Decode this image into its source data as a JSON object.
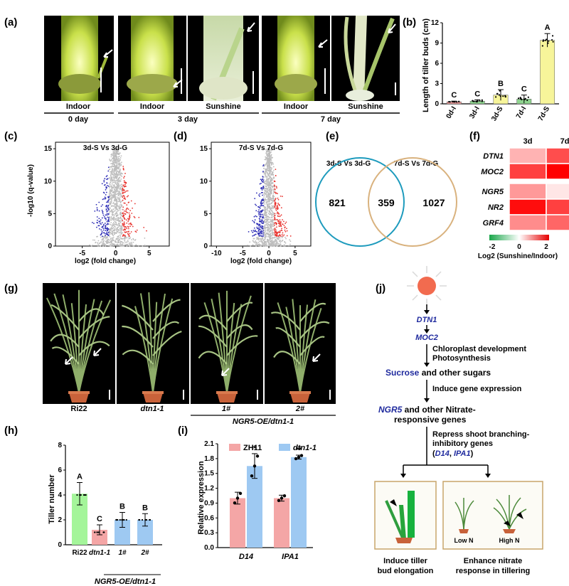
{
  "panels": [
    "(a)",
    "(b)",
    "(c)",
    "(d)",
    "(e)",
    "(f)",
    "(g)",
    "(h)",
    "(i)",
    "(j)"
  ],
  "panel_a": {
    "image_labels": [
      "Indoor",
      "Indoor",
      "Sunshine",
      "Indoor",
      "Sunshine"
    ],
    "day_labels": [
      "0 day",
      "3 day",
      "7 day"
    ]
  },
  "panel_c": {
    "title": "3d-S Vs 3d-G",
    "xlabel": "log2 (fold change)",
    "ylabel": "-log10 (q-value)"
  },
  "panel_d": {
    "title": "7d-S Vs 7d-G",
    "xlabel": "log2 (fold change)"
  },
  "panel_e": {
    "left_label": "3d-S Vs 3d-G",
    "right_label": "7d-S Vs 7d-G",
    "left_only": "821",
    "overlap": "359",
    "right_only": "1027"
  },
  "panel_f": {
    "genes": [
      "DTN1",
      "MOC2",
      "NGR5",
      "NR2",
      "GRF4"
    ],
    "cols": [
      "3d",
      "7d"
    ],
    "legend_ticks": [
      "-2",
      "0",
      "2"
    ],
    "legend_title": "Log2 (Sunshine/Indoor)"
  },
  "panel_g": {
    "labels": [
      "Ri22",
      "dtn1-1",
      "1#",
      "2#"
    ],
    "group_label": "NGR5-OE/dtn1-1"
  },
  "panel_j": {
    "dtn1": "DTN1",
    "moc2": "MOC2",
    "step1a": "Chloroplast development",
    "step1b": "Photosynthesis",
    "sucrose": "Sucrose",
    "sucrose_rest": " and other sugars",
    "step2": "Induce gene expression",
    "ngr5": "NGR5",
    "ngr5_rest": " and other Nitrate-",
    "ngr5_line2": "responsive genes",
    "step3a": "Repress shoot branching-",
    "step3b": "inhibitory genes",
    "step3c_open": "(",
    "d14": "D14",
    "comma": ", ",
    "ipa1": "IPA1",
    "step3c_close": ")",
    "low_n": "Low N",
    "high_n": "High N",
    "out1a": "Induce tiller",
    "out1b": "bud elongation",
    "out2a": "Enhance nitrate",
    "out2b": "response in tillering"
  },
  "colors": {
    "red": "#e8342f",
    "blue": "#2b2bb5",
    "gray": "#bdbdbd",
    "yellow": "#f7f59a",
    "green": "#a4f59a",
    "pink": "#f4a6a6",
    "lightblue": "#9ec9f2",
    "venn_left": "#1e9bbd",
    "venn_right": "#d9b27e",
    "sun": "#f26b4f"
  },
  "chart_data": [
    {
      "panel": "(b)",
      "type": "bar",
      "categories": [
        "0d-I",
        "3d-I",
        "3d-S",
        "7d-I",
        "7d-S"
      ],
      "values": [
        0.3,
        0.4,
        1.3,
        0.7,
        9.4
      ],
      "errors": [
        0.1,
        0.2,
        0.8,
        0.6,
        1.0
      ],
      "significance": [
        "C",
        "C",
        "B",
        "C",
        "A"
      ],
      "ylabel": "Length of tiller buds (cm)",
      "ylim": [
        0,
        12
      ],
      "yticks": [
        0,
        3,
        6,
        9,
        12
      ]
    },
    {
      "panel": "(c)",
      "type": "scatter",
      "xlabel": "log2 (fold change)",
      "ylabel": "-log10 (q-value)",
      "xlim": [
        -9,
        8
      ],
      "ylim": [
        0,
        16
      ],
      "xticks": [
        -5,
        0,
        5
      ],
      "yticks": [
        0,
        5,
        10,
        15
      ]
    },
    {
      "panel": "(d)",
      "type": "scatter",
      "xlabel": "log2 (fold change)",
      "xlim": [
        -11,
        8
      ],
      "ylim": [
        0,
        16
      ],
      "xticks": [
        -10,
        -5,
        0,
        5
      ],
      "yticks": [
        0,
        5,
        10,
        15
      ]
    },
    {
      "panel": "(f)",
      "type": "heatmap",
      "rows": [
        "DTN1",
        "MOC2",
        "NGR5",
        "NR2",
        "GRF4"
      ],
      "cols": [
        "3d",
        "7d"
      ],
      "values": [
        [
          0.6,
          1.4
        ],
        [
          1.5,
          2.0
        ],
        [
          0.8,
          0.2
        ],
        [
          1.9,
          1.5
        ],
        [
          0.9,
          1.2
        ]
      ],
      "scale": [
        -2,
        2
      ]
    },
    {
      "panel": "(h)",
      "type": "bar",
      "categories": [
        "Ri22",
        "dtn1-1",
        "1#",
        "2#"
      ],
      "values": [
        4.1,
        1.2,
        2.0,
        2.0
      ],
      "errors": [
        0.9,
        0.4,
        0.6,
        0.5
      ],
      "significance": [
        "A",
        "C",
        "B",
        "B"
      ],
      "ylabel": "Tiller number",
      "ylim": [
        0,
        8
      ],
      "yticks": [
        0,
        2,
        4,
        6,
        8
      ]
    },
    {
      "panel": "(i)",
      "type": "bar",
      "categories": [
        "D14",
        "IPA1"
      ],
      "series": [
        {
          "name": "ZH11",
          "values": [
            1.0,
            1.0
          ],
          "errors": [
            0.12,
            0.06
          ]
        },
        {
          "name": "dtn1-1",
          "values": [
            1.65,
            1.83
          ],
          "errors": [
            0.25,
            0.04
          ]
        }
      ],
      "significance": [
        "*",
        "**"
      ],
      "ylabel": "Relative expression",
      "ylim": [
        0,
        2.1
      ],
      "yticks": [
        0.0,
        0.3,
        0.6,
        0.9,
        1.2,
        1.5,
        1.8,
        2.1
      ]
    }
  ]
}
